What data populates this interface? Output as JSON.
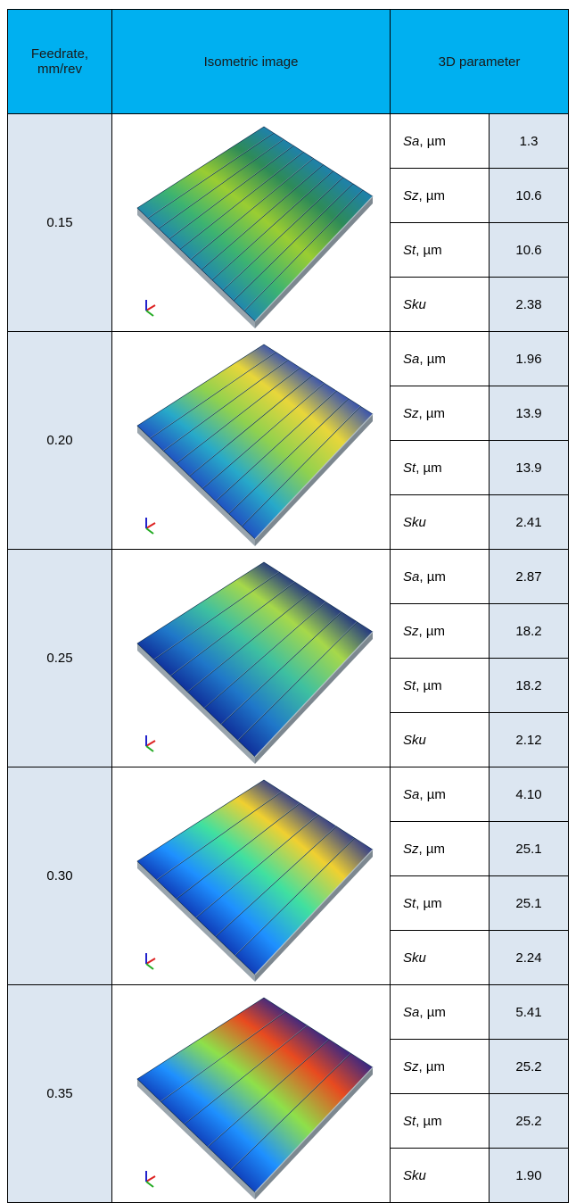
{
  "table": {
    "header": [
      "Feedrate, mm/rev",
      "Isometric image",
      "3D parameter"
    ],
    "rows": [
      {
        "feedrate": "0.15",
        "parameters": [
          {
            "name": "Sa",
            "unit": ", µm",
            "value": "1.3"
          },
          {
            "name": "Sz",
            "unit": ", µm",
            "value": "10.6"
          },
          {
            "name": "St",
            "unit": ", µm",
            "value": "10.6"
          },
          {
            "name": "Sku",
            "value": "2.38"
          }
        ]
      },
      {
        "feedrate": "0.20",
        "parameters": [
          {
            "name": "Sa",
            "unit": ", µm",
            "value": "1.96"
          },
          {
            "name": "Sz",
            "unit": ", µm",
            "value": "13.9"
          },
          {
            "name": "St",
            "unit": ", µm",
            "value": "13.9"
          },
          {
            "name": "Sku",
            "value": "2.41"
          }
        ]
      },
      {
        "feedrate": "0.25",
        "parameters": [
          {
            "name": "Sa",
            "unit": ", µm",
            "value": "2.87"
          },
          {
            "name": "Sz",
            "unit": ", µm",
            "value": "18.2"
          },
          {
            "name": "St",
            "unit": ", µm",
            "value": "18.2"
          },
          {
            "name": "Sku",
            "value": "2.12"
          }
        ]
      },
      {
        "feedrate": "0.30",
        "parameters": [
          {
            "name": "Sa",
            "unit": ", µm",
            "value": "4.10"
          },
          {
            "name": "Sz",
            "unit": ", µm",
            "value": "25.1"
          },
          {
            "name": "St",
            "unit": ", µm",
            "value": "25.1"
          },
          {
            "name": "Sku",
            "value": "2.24"
          }
        ]
      },
      {
        "feedrate": "0.35",
        "parameters": [
          {
            "name": "Sa",
            "unit": ", µm",
            "value": "5.41"
          },
          {
            "name": "Sz",
            "unit": ", µm",
            "value": "25.2"
          },
          {
            "name": "St",
            "unit": ", µm",
            "value": "25.2"
          },
          {
            "name": "Sku",
            "value": "1.90"
          }
        ]
      }
    ]
  }
}
